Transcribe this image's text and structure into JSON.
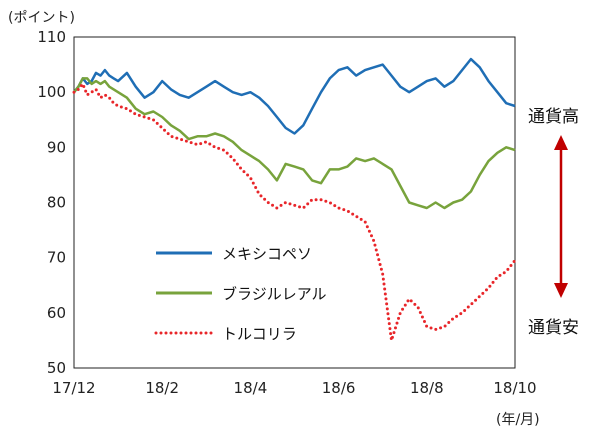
{
  "chart_data": {
    "type": "line",
    "ylabel": "(ポイント)",
    "xlabel": "(年/月)",
    "ylim": [
      50,
      110
    ],
    "yticks": [
      "110",
      "100",
      "90",
      "80",
      "70",
      "60",
      "50"
    ],
    "categories": [
      "17/12",
      "18/2",
      "18/4",
      "18/6",
      "18/8",
      "18/10"
    ],
    "grid": false,
    "legend_position": "lower-left",
    "annotations": {
      "top": "通貨高",
      "bottom": "通貨安"
    },
    "series": [
      {
        "name": "メキシコペソ",
        "color": "#1f6eb5",
        "style": "solid",
        "x": [
          0,
          0.1,
          0.2,
          0.3,
          0.4,
          0.5,
          0.6,
          0.7,
          0.8,
          0.9,
          1.0,
          1.2,
          1.4,
          1.6,
          1.8,
          2.0,
          2.2,
          2.4,
          2.6,
          2.8,
          3.0,
          3.2,
          3.4,
          3.6,
          3.8,
          4.0,
          4.2,
          4.4,
          4.6,
          4.8,
          5.0,
          5.2,
          5.4,
          5.6,
          5.8,
          6.0,
          6.2,
          6.4,
          6.6,
          6.8,
          7.0,
          7.2,
          7.4,
          7.6,
          7.8,
          8.0,
          8.2,
          8.4,
          8.6,
          8.8,
          9.0,
          9.2,
          9.4,
          9.6,
          9.8,
          10.0
        ],
        "values": [
          100,
          101,
          102.5,
          101.5,
          102,
          103.5,
          103,
          104,
          103,
          102.5,
          102,
          103.5,
          101,
          99,
          100,
          102,
          100.5,
          99.5,
          99,
          100,
          101,
          102,
          101,
          100,
          99.5,
          100,
          99,
          97.5,
          95.5,
          93.5,
          92.5,
          94,
          97,
          100,
          102.5,
          104,
          104.5,
          103,
          104,
          104.5,
          105,
          103,
          101,
          100,
          101,
          102,
          102.5,
          101,
          102,
          104,
          106,
          104.5,
          102,
          100,
          98,
          97.5
        ]
      },
      {
        "name": "ブラジルレアル",
        "color": "#78a33c",
        "style": "solid",
        "x": [
          0,
          0.1,
          0.2,
          0.3,
          0.4,
          0.5,
          0.6,
          0.7,
          0.8,
          0.9,
          1.0,
          1.2,
          1.4,
          1.6,
          1.8,
          2.0,
          2.2,
          2.4,
          2.6,
          2.8,
          3.0,
          3.2,
          3.4,
          3.6,
          3.8,
          4.0,
          4.2,
          4.4,
          4.6,
          4.8,
          5.0,
          5.2,
          5.4,
          5.6,
          5.8,
          6.0,
          6.2,
          6.4,
          6.6,
          6.8,
          7.0,
          7.2,
          7.4,
          7.6,
          7.8,
          8.0,
          8.2,
          8.4,
          8.6,
          8.8,
          9.0,
          9.2,
          9.4,
          9.6,
          9.8,
          10.0
        ],
        "values": [
          100,
          101,
          102.5,
          102.5,
          101.5,
          102,
          101.5,
          102,
          101,
          100.5,
          100,
          99,
          97,
          96,
          96.5,
          95.5,
          94,
          93,
          91.5,
          92,
          92,
          92.5,
          92,
          91,
          89.5,
          88.5,
          87.5,
          86,
          84,
          87,
          86.5,
          86,
          84,
          83.5,
          86,
          86,
          86.5,
          88,
          87.5,
          88,
          87,
          86,
          83,
          80,
          79.5,
          79,
          80,
          79,
          80,
          80.5,
          82,
          85,
          87.5,
          89,
          90,
          89.5
        ]
      },
      {
        "name": "トルコリラ",
        "color": "#e8262a",
        "style": "dotted",
        "x": [
          0,
          0.1,
          0.2,
          0.3,
          0.4,
          0.5,
          0.6,
          0.7,
          0.8,
          0.9,
          1.0,
          1.2,
          1.4,
          1.6,
          1.8,
          2.0,
          2.2,
          2.4,
          2.6,
          2.8,
          3.0,
          3.2,
          3.4,
          3.6,
          3.8,
          4.0,
          4.2,
          4.4,
          4.6,
          4.8,
          5.0,
          5.2,
          5.4,
          5.6,
          5.8,
          6.0,
          6.2,
          6.4,
          6.6,
          6.8,
          7.0,
          7.2,
          7.4,
          7.6,
          7.8,
          8.0,
          8.2,
          8.4,
          8.6,
          8.8,
          9.0,
          9.2,
          9.4,
          9.6,
          9.8,
          10.0
        ],
        "values": [
          100,
          100.5,
          101.5,
          99.5,
          100,
          100.5,
          99,
          99.5,
          99,
          98,
          97.5,
          97,
          96,
          95.5,
          95,
          93.5,
          92,
          91.5,
          91,
          90.5,
          91,
          90,
          89.5,
          88,
          86,
          84.5,
          81.5,
          80,
          79,
          80,
          79.5,
          79,
          80.5,
          80.5,
          80,
          79,
          78.5,
          77.5,
          76.5,
          73,
          67,
          55,
          60,
          62.5,
          61,
          57.5,
          57,
          57.5,
          59,
          60,
          61.5,
          63,
          64.5,
          66.5,
          67.5,
          69.5
        ]
      }
    ]
  }
}
